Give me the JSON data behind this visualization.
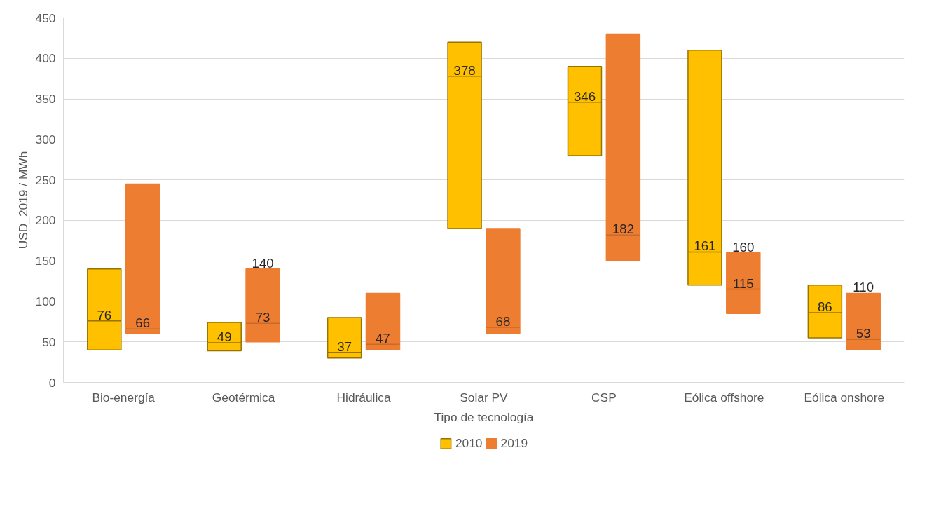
{
  "chart_data": {
    "type": "box",
    "categories": [
      "Bio-energía",
      "Geotérmica",
      "Hidráulica",
      "Solar PV",
      "CSP",
      "Eólica offshore",
      "Eólica onshore"
    ],
    "xlabel": "Tipo de tecnología",
    "ylabel": "USD_2019 / MWh",
    "ylim": [
      0,
      450
    ],
    "yticks": [
      0,
      50,
      100,
      150,
      200,
      250,
      300,
      350,
      400,
      450
    ],
    "grid": "y",
    "legend": "bottom",
    "series": [
      {
        "name": "2010",
        "color": "#ffc000",
        "boxes": [
          {
            "low": 40,
            "q1": 40,
            "median": 76,
            "q3": 140,
            "high": 140
          },
          {
            "low": 39,
            "q1": 39,
            "median": 49,
            "q3": 74,
            "high": 74
          },
          {
            "low": 30,
            "q1": 30,
            "median": 37,
            "q3": 80,
            "high": 80
          },
          {
            "low": 190,
            "q1": 190,
            "median": 378,
            "q3": 420,
            "high": 420
          },
          {
            "low": 280,
            "q1": 280,
            "median": 346,
            "q3": 390,
            "high": 390
          },
          {
            "low": 120,
            "q1": 120,
            "median": 161,
            "q3": 410,
            "high": 410
          },
          {
            "low": 55,
            "q1": 55,
            "median": 86,
            "q3": 120,
            "high": 120
          }
        ]
      },
      {
        "name": "2019",
        "color": "#ed7d31",
        "boxes": [
          {
            "low": 60,
            "q1": 60,
            "median": 66,
            "q3": 245,
            "high": 245
          },
          {
            "low": 50,
            "q1": 50,
            "median": 73,
            "q3": 140,
            "high": 140
          },
          {
            "low": 40,
            "q1": 40,
            "median": 47,
            "q3": 110,
            "high": 110
          },
          {
            "low": 60,
            "q1": 60,
            "median": 68,
            "q3": 190,
            "high": 190
          },
          {
            "low": 150,
            "q1": 150,
            "median": 182,
            "q3": 430,
            "high": 430
          },
          {
            "low": 85,
            "q1": 85,
            "median": 115,
            "q3": 160,
            "high": 160
          },
          {
            "low": 40,
            "q1": 40,
            "median": 53,
            "q3": 110,
            "high": 110
          }
        ]
      }
    ],
    "annotations": [
      {
        "text": "76",
        "x": "Bio-energía",
        "y": 76
      },
      {
        "text": "66",
        "x": "Bio-energía",
        "y": 66
      },
      {
        "text": "49",
        "x": "Geotérmica",
        "y": 49
      },
      {
        "text": "73",
        "x": "Geotérmica",
        "y": 73
      },
      {
        "text": "140",
        "x": "Geotérmica",
        "y": 140
      },
      {
        "text": "37",
        "x": "Hidráulica",
        "y": 37
      },
      {
        "text": "47",
        "x": "Hidráulica",
        "y": 47
      },
      {
        "text": "378",
        "x": "Solar PV",
        "y": 378
      },
      {
        "text": "68",
        "x": "Solar PV",
        "y": 68
      },
      {
        "text": "346",
        "x": "CSP",
        "y": 346
      },
      {
        "text": "182",
        "x": "CSP",
        "y": 182
      },
      {
        "text": "161",
        "x": "Eólica offshore",
        "y": 161
      },
      {
        "text": "115",
        "x": "Eólica offshore",
        "y": 115
      },
      {
        "text": "160",
        "x": "Eólica offshore",
        "y": 160
      },
      {
        "text": "86",
        "x": "Eólica onshore",
        "y": 86
      },
      {
        "text": "53",
        "x": "Eólica onshore",
        "y": 53
      },
      {
        "text": "110",
        "x": "Eólica onshore",
        "y": 110
      }
    ]
  }
}
